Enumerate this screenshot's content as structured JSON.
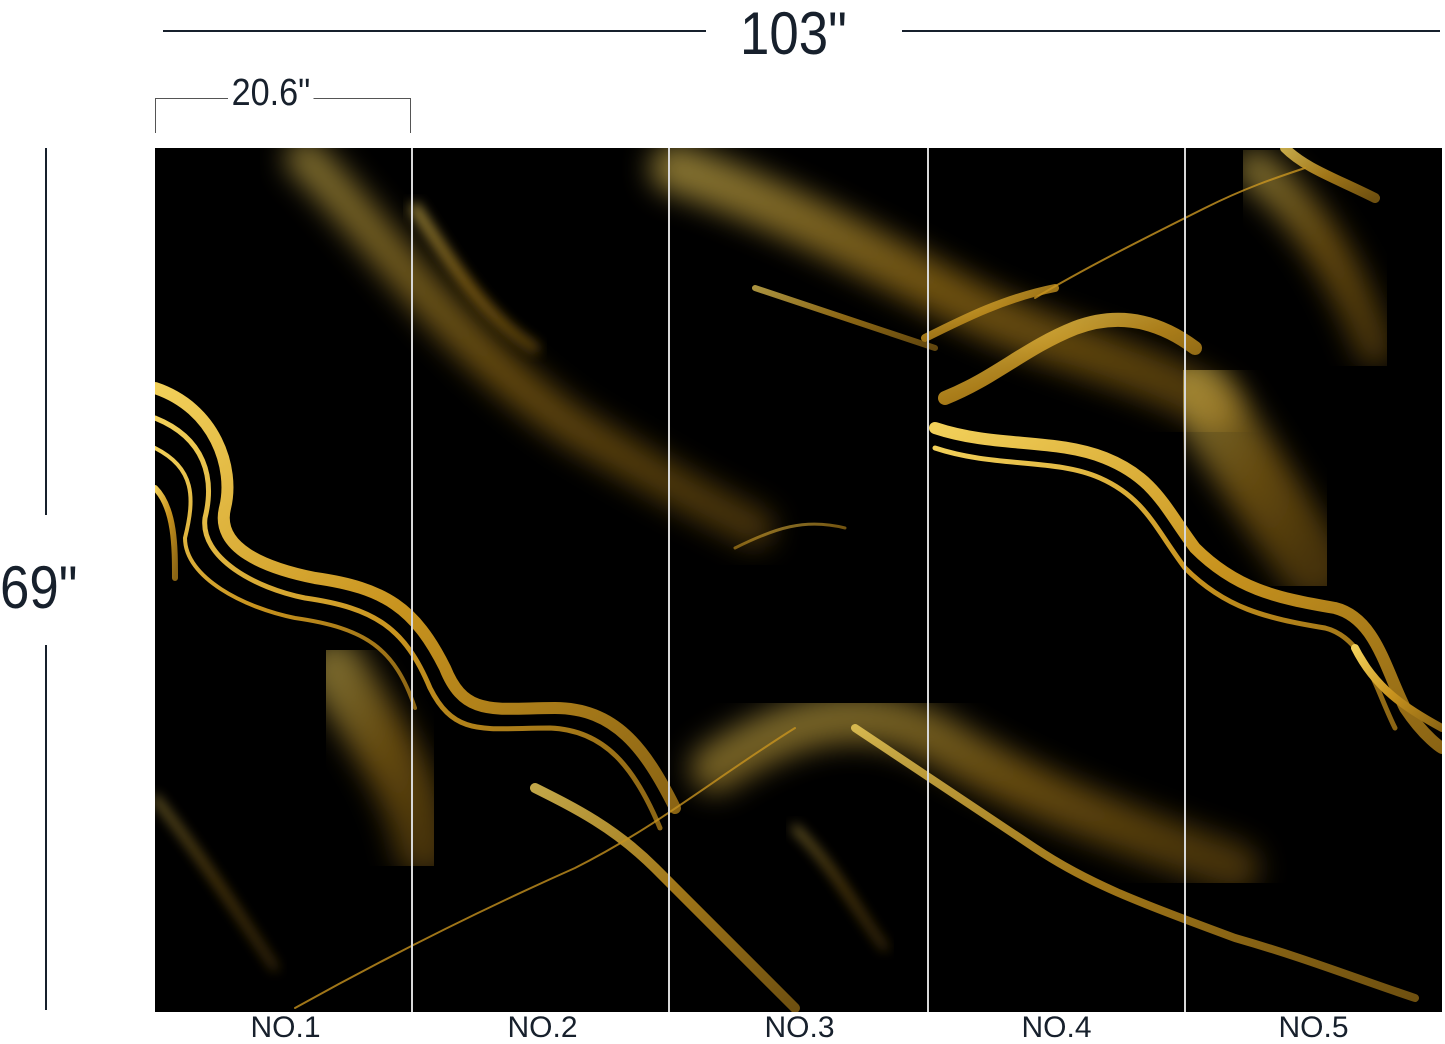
{
  "dimensions": {
    "total_width": "103\"",
    "panel_width": "20.6\"",
    "height": "69\""
  },
  "panels": [
    {
      "label": "NO.1"
    },
    {
      "label": "NO.2"
    },
    {
      "label": "NO.3"
    },
    {
      "label": "NO.4"
    },
    {
      "label": "NO.5"
    }
  ],
  "colors": {
    "background": "#000000",
    "gold": "#d4a52a",
    "text": "#17202c"
  }
}
